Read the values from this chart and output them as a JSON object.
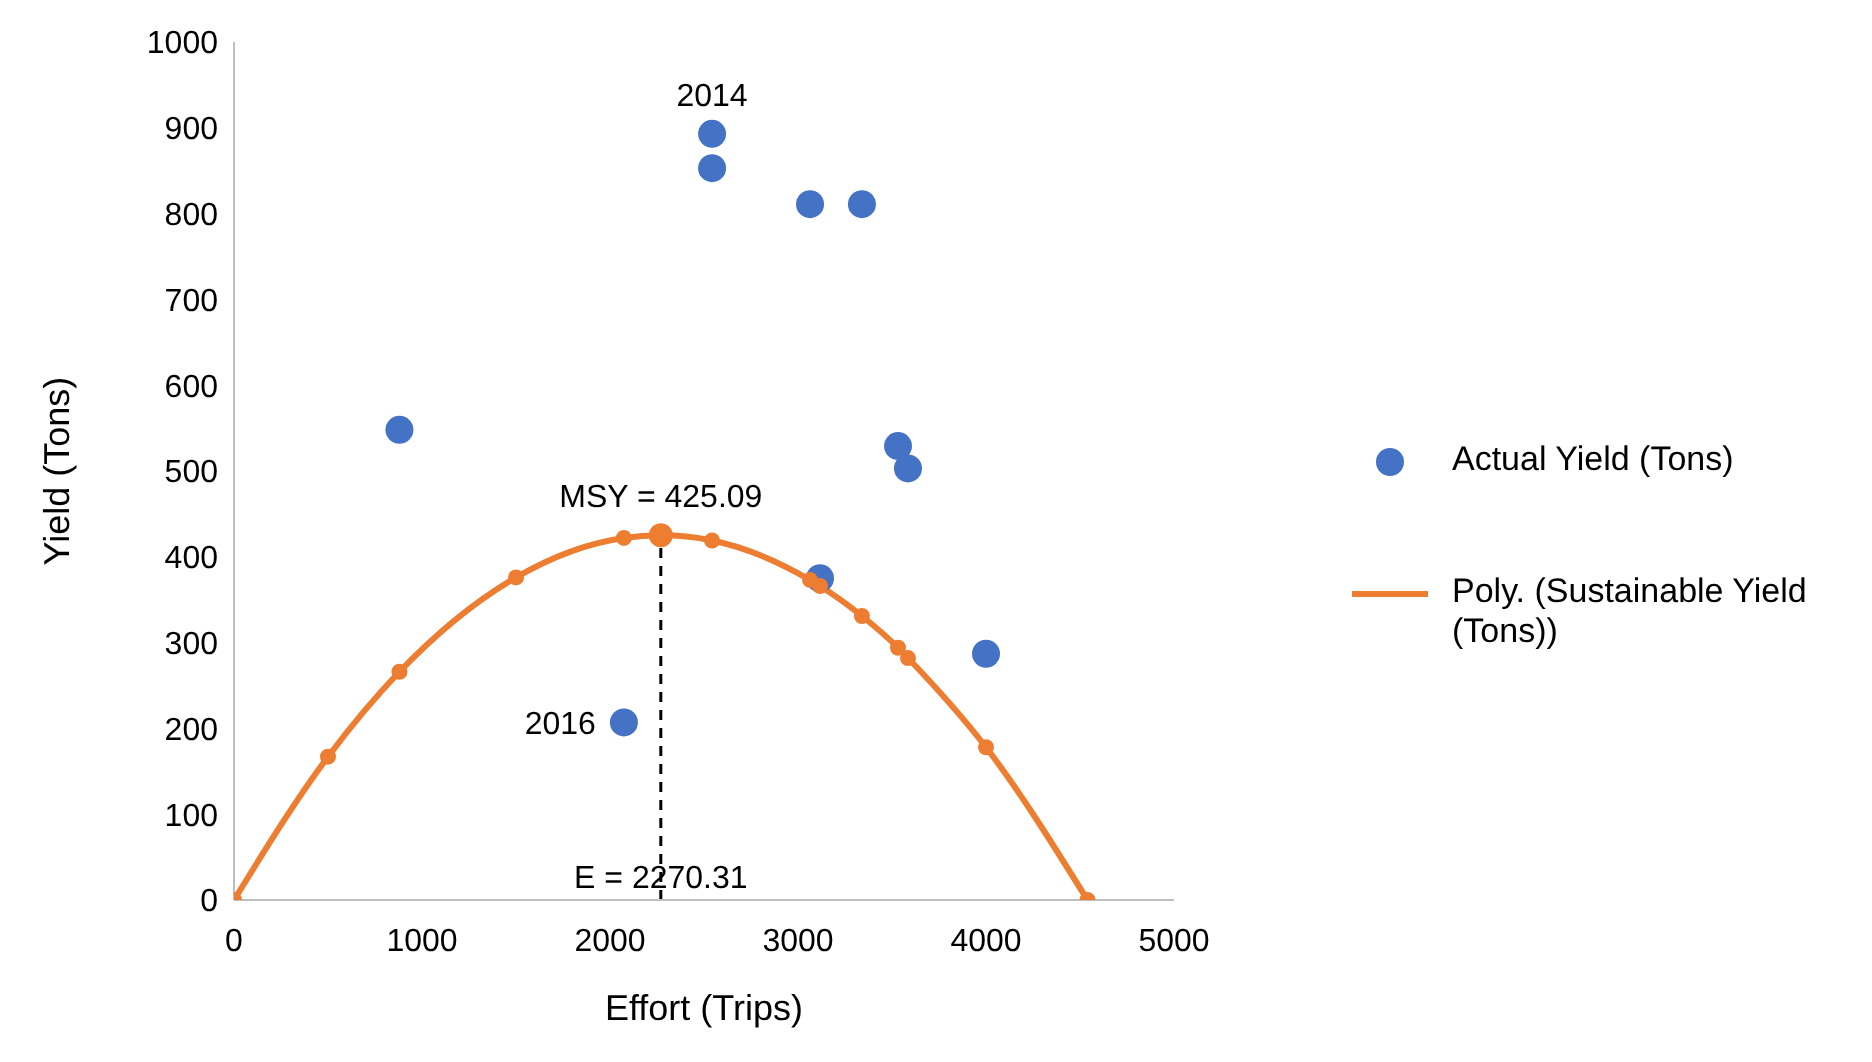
{
  "chart_data": {
    "type": "scatter",
    "xlabel": "Effort (Trips)",
    "ylabel": "Yield (Tons)",
    "xlim": [
      0,
      5000
    ],
    "xticks": [
      0,
      1000,
      2000,
      3000,
      4000,
      5000
    ],
    "ylim": [
      0,
      1000
    ],
    "yticks": [
      0,
      100,
      200,
      300,
      400,
      500,
      600,
      700,
      800,
      900,
      1000
    ],
    "grid": false,
    "legend": "right",
    "marker": "circle",
    "series": [
      {
        "name": "Actual Yield (Tons)",
        "color": "#4472c4",
        "x": [
          880,
          2543,
          2543,
          3064,
          3340,
          3532,
          3585,
          3117,
          4000,
          2074
        ],
        "values": [
          548,
          893,
          853,
          811,
          811,
          529,
          503,
          375,
          287,
          207
        ]
      },
      {
        "name": "Poly. (Sustainable Yield (Tons))",
        "type": "line",
        "color": "#ed7d31",
        "line_style": "solid",
        "x": [
          0,
          500,
          880,
          1500,
          2074,
          2270.31,
          2543,
          3064,
          3117,
          3340,
          3532,
          3585,
          4000,
          4540
        ],
        "values": [
          0,
          167,
          266,
          376,
          422,
          425,
          419,
          373,
          366,
          331,
          294,
          282,
          178,
          0
        ]
      },
      {
        "color": "#ed7d31",
        "x": [
          2270.31
        ],
        "values": [
          425
        ]
      }
    ],
    "ref_lines": [
      {
        "axis": "x",
        "value": 2270.31,
        "label": "E = 2270.31",
        "line_style": "dashed",
        "color": "#000000"
      }
    ],
    "annotations": [
      {
        "text": "2014",
        "x": 2543,
        "y": 893
      },
      {
        "text": "2016",
        "x": 2074,
        "y": 207
      },
      {
        "text": "MSY = 425.09",
        "x": 2270.31,
        "y": 425.09
      }
    ]
  }
}
